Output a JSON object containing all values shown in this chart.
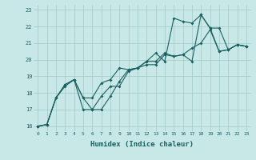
{
  "xlabel": "Humidex (Indice chaleur)",
  "xlim": [
    -0.5,
    23.5
  ],
  "ylim": [
    15.7,
    23.3
  ],
  "xticks": [
    0,
    1,
    2,
    3,
    4,
    5,
    6,
    7,
    8,
    9,
    10,
    11,
    12,
    13,
    14,
    15,
    16,
    17,
    18,
    19,
    20,
    21,
    22,
    23
  ],
  "yticks": [
    16,
    17,
    18,
    19,
    20,
    21,
    22,
    23
  ],
  "background_color": "#c8e8e8",
  "grid_color": "#a0c8c8",
  "line_color": "#1a6060",
  "line1_x": [
    0,
    1,
    2,
    3,
    4,
    5,
    6,
    7,
    8,
    9,
    10,
    11,
    12,
    13,
    14,
    15,
    16,
    17,
    18,
    19,
    20,
    21,
    22,
    23
  ],
  "line1_y": [
    16.0,
    16.1,
    17.7,
    18.5,
    18.8,
    17.0,
    17.0,
    17.8,
    18.4,
    18.4,
    19.3,
    19.5,
    19.9,
    20.4,
    19.9,
    22.5,
    22.3,
    22.2,
    22.7,
    21.9,
    20.5,
    20.6,
    20.9,
    20.8
  ],
  "line2_x": [
    0,
    1,
    2,
    3,
    4,
    5,
    6,
    7,
    8,
    9,
    10,
    11,
    12,
    13,
    14,
    15,
    16,
    17,
    18,
    19,
    20,
    21,
    22,
    23
  ],
  "line2_y": [
    16.0,
    16.1,
    17.7,
    18.5,
    18.8,
    17.7,
    17.0,
    17.0,
    17.8,
    18.7,
    19.4,
    19.5,
    19.9,
    19.9,
    20.4,
    20.2,
    20.3,
    19.9,
    22.7,
    21.9,
    21.9,
    20.6,
    20.9,
    20.8
  ],
  "line3_x": [
    0,
    1,
    2,
    3,
    4,
    5,
    6,
    7,
    8,
    9,
    10,
    11,
    12,
    13,
    14,
    15,
    16,
    17,
    18,
    19,
    20,
    21,
    22,
    23
  ],
  "line3_y": [
    16.0,
    16.1,
    17.7,
    18.4,
    18.8,
    17.7,
    17.7,
    18.6,
    18.8,
    19.5,
    19.4,
    19.5,
    19.7,
    19.7,
    20.3,
    20.2,
    20.3,
    20.7,
    21.0,
    21.8,
    20.5,
    20.6,
    20.9,
    20.8
  ],
  "marker_size": 2,
  "line_width": 0.8
}
